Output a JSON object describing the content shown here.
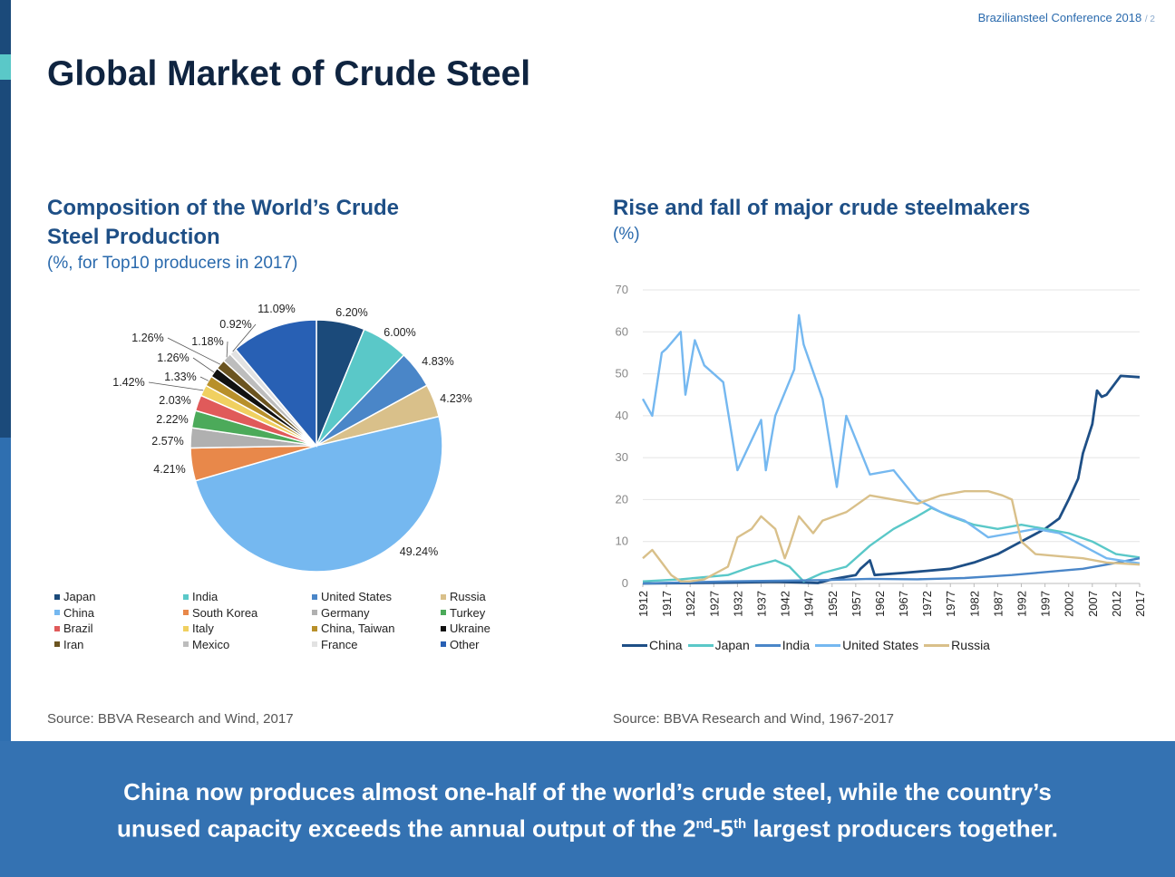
{
  "header": {
    "conference": "Braziliansteel Conference 2018",
    "page": "/ 2",
    "title": "Global Market of Crude Steel"
  },
  "left_panel": {
    "heading_line1": "Composition of the World’s Crude",
    "heading_line2": "Steel Production",
    "subtitle": "(%, for Top10 producers in 2017)",
    "source": "Source: BBVA Research and Wind, 2017"
  },
  "right_panel": {
    "heading": "Rise and fall of major crude steelmakers",
    "subtitle": "(%)",
    "source": "Source: BBVA Research and Wind, 1967-2017"
  },
  "footer": {
    "line1": "China now produces almost one-half of the world’s crude steel, while the country’s",
    "line2_a": "unused capacity exceeds the annual output of the 2",
    "sup1": "nd",
    "line2_b": "-5",
    "sup2": "th",
    "line2_c": " largest producers together."
  },
  "chart_data": [
    {
      "type": "pie",
      "slices": [
        {
          "name": "Japan",
          "value": 6.2,
          "label": "6.20%",
          "color": "#1b4a7a"
        },
        {
          "name": "India",
          "value": 6.0,
          "label": "6.00%",
          "color": "#5ac8c8"
        },
        {
          "name": "United States",
          "value": 4.83,
          "label": "4.83%",
          "color": "#4a86c8"
        },
        {
          "name": "Russia",
          "value": 4.23,
          "label": "4.23%",
          "color": "#d9c08a"
        },
        {
          "name": "China",
          "value": 49.24,
          "label": "49.24%",
          "color": "#75b8f0"
        },
        {
          "name": "South Korea",
          "value": 4.21,
          "label": "4.21%",
          "color": "#e8884a"
        },
        {
          "name": "Germany",
          "value": 2.57,
          "label": "2.57%",
          "color": "#b0b0b0"
        },
        {
          "name": "Turkey",
          "value": 2.22,
          "label": "2.22%",
          "color": "#4caa5a"
        },
        {
          "name": "Brazil",
          "value": 2.03,
          "label": "2.03%",
          "color": "#e05a5a"
        },
        {
          "name": "Italy",
          "value": 1.42,
          "label": "1.42%",
          "color": "#f0d060"
        },
        {
          "name": "China, Taiwan",
          "value": 1.33,
          "label": "1.33%",
          "color": "#b8902a"
        },
        {
          "name": "Ukraine",
          "value": 1.26,
          "label": "1.26%",
          "color": "#111111"
        },
        {
          "name": "Iran",
          "value": 1.26,
          "label": "1.26%",
          "color": "#6b5420"
        },
        {
          "name": "Mexico",
          "value": 1.18,
          "label": "1.18%",
          "color": "#bdbdbd"
        },
        {
          "name": "France",
          "value": 0.92,
          "label": "0.92%",
          "color": "#e2e2e2"
        },
        {
          "name": "Other",
          "value": 11.09,
          "label": "11.09%",
          "color": "#2860b4"
        }
      ],
      "legend": [
        "Japan",
        "India",
        "United States",
        "Russia",
        "China",
        "South Korea",
        "Germany",
        "Turkey",
        "Brazil",
        "Italy",
        "China, Taiwan",
        "Ukraine",
        "Iran",
        "Mexico",
        "France",
        "Other"
      ]
    },
    {
      "type": "line",
      "ylim": [
        0,
        70
      ],
      "yticks": [
        0,
        10,
        20,
        30,
        40,
        50,
        60,
        70
      ],
      "xlim": [
        1912,
        2017
      ],
      "xticks": [
        1912,
        1917,
        1922,
        1927,
        1932,
        1937,
        1942,
        1947,
        1952,
        1957,
        1962,
        1967,
        1972,
        1977,
        1982,
        1987,
        1992,
        1997,
        2002,
        2007,
        2012,
        2017
      ],
      "series": [
        {
          "name": "China",
          "color": "#1e4f86",
          "x": [
            1912,
            1930,
            1940,
            1949,
            1952,
            1957,
            1958,
            1960,
            1961,
            1967,
            1972,
            1977,
            1982,
            1987,
            1992,
            1997,
            2000,
            2002,
            2004,
            2005,
            2007,
            2008,
            2009,
            2010,
            2012,
            2013,
            2017
          ],
          "y": [
            0,
            0.2,
            0.4,
            0.1,
            1,
            2,
            3.5,
            5.5,
            2,
            2.5,
            3,
            3.5,
            5,
            7,
            10,
            13,
            15.5,
            20,
            25,
            31,
            38,
            46,
            44.5,
            45,
            48,
            49.5,
            49.2
          ]
        },
        {
          "name": "Japan",
          "color": "#5ac8c8",
          "x": [
            1912,
            1920,
            1930,
            1935,
            1940,
            1943,
            1946,
            1950,
            1955,
            1960,
            1965,
            1970,
            1973,
            1977,
            1982,
            1987,
            1992,
            1997,
            2002,
            2007,
            2012,
            2017
          ],
          "y": [
            0.5,
            1,
            2,
            4,
            5.5,
            4,
            0.5,
            2.5,
            4,
            9,
            13,
            16,
            18,
            16,
            14,
            13,
            14,
            13,
            12,
            10,
            7,
            6.2
          ]
        },
        {
          "name": "India",
          "color": "#4a86c8",
          "x": [
            1912,
            1930,
            1950,
            1960,
            1970,
            1980,
            1990,
            1995,
            2000,
            2005,
            2010,
            2017
          ],
          "y": [
            0,
            0.5,
            0.8,
            1.1,
            1,
            1.3,
            2,
            2.5,
            3,
            3.5,
            4.5,
            6
          ]
        },
        {
          "name": "United States",
          "color": "#75b8f0",
          "x": [
            1912,
            1914,
            1916,
            1917,
            1920,
            1921,
            1923,
            1925,
            1929,
            1932,
            1937,
            1938,
            1940,
            1944,
            1945,
            1946,
            1950,
            1953,
            1955,
            1960,
            1965,
            1970,
            1975,
            1980,
            1985,
            1990,
            1995,
            2000,
            2005,
            2010,
            2017
          ],
          "y": [
            44,
            40,
            55,
            56,
            60,
            45,
            58,
            52,
            48,
            27,
            39,
            27,
            40,
            51,
            64,
            57,
            44,
            23,
            40,
            26,
            27,
            20,
            17,
            15,
            11,
            12,
            13,
            12,
            9,
            6,
            4.8
          ]
        },
        {
          "name": "Russia",
          "color": "#d9c08a",
          "x": [
            1912,
            1914,
            1916,
            1918,
            1920,
            1922,
            1925,
            1930,
            1932,
            1935,
            1937,
            1940,
            1942,
            1943,
            1945,
            1948,
            1950,
            1955,
            1960,
            1965,
            1970,
            1975,
            1980,
            1985,
            1988,
            1990,
            1992,
            1995,
            2000,
            2005,
            2010,
            2017
          ],
          "y": [
            6,
            8,
            5,
            2,
            0.5,
            0.5,
            1,
            4,
            11,
            13,
            16,
            13,
            6,
            9,
            16,
            12,
            15,
            17,
            21,
            20,
            19,
            21,
            22,
            22,
            21,
            20,
            10,
            7,
            6.5,
            6,
            5,
            4.5
          ]
        }
      ],
      "legend": [
        "China",
        "Japan",
        "India",
        "United States",
        "Russia"
      ]
    }
  ]
}
